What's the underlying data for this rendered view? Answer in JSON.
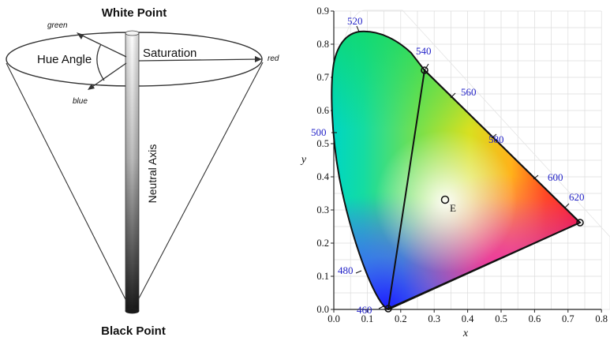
{
  "cone": {
    "white_point": "White Point",
    "black_point": "Black Point",
    "hue_angle": "Hue Angle",
    "saturation": "Saturation",
    "neutral_axis": "Neutral Axis",
    "green": "green",
    "red": "red",
    "blue": "blue"
  },
  "cie": {
    "x_label": "x",
    "y_label": "y",
    "white_point_label": "E",
    "x_ticks": [
      "0.0",
      "0.1",
      "0.2",
      "0.3",
      "0.4",
      "0.5",
      "0.6",
      "0.7",
      "0.8"
    ],
    "y_ticks": [
      "0.0",
      "0.1",
      "0.2",
      "0.3",
      "0.4",
      "0.5",
      "0.6",
      "0.7",
      "0.8",
      "0.9"
    ],
    "wavelengths": [
      "460",
      "480",
      "500",
      "520",
      "540",
      "560",
      "580",
      "600",
      "620"
    ]
  }
}
